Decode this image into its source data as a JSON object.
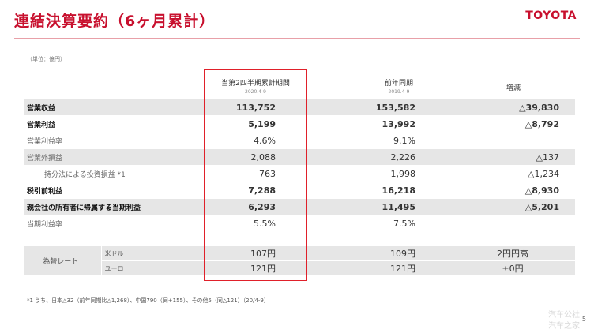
{
  "title": "連結決算要約（6ヶ月累計）",
  "brand": "TOYOTA",
  "unit": "（単位：億円）",
  "columns": {
    "current": {
      "label": "当第2四半期累計期間",
      "period": "2020.4-9"
    },
    "prior": {
      "label": "前年同期",
      "period": "2019.4-9"
    },
    "change": {
      "label": "増減"
    }
  },
  "rows": [
    {
      "label": "営業収益",
      "current": "113,752",
      "prior": "153,582",
      "change": "△39,830"
    },
    {
      "label": "営業利益",
      "current": "5,199",
      "prior": "13,992",
      "change": "△8,792"
    },
    {
      "label": "営業利益率",
      "current": "4.6%",
      "prior": "9.1%",
      "change": ""
    },
    {
      "label": "営業外損益",
      "current": "2,088",
      "prior": "2,226",
      "change": "△137"
    },
    {
      "label": "持分法による投資損益 *1",
      "current": "763",
      "prior": "1,998",
      "change": "△1,234"
    },
    {
      "label": "税引前利益",
      "current": "7,288",
      "prior": "16,218",
      "change": "△8,930"
    },
    {
      "label": "親会社の所有者に帰属する当期利益",
      "current": "6,293",
      "prior": "11,495",
      "change": "△5,201"
    },
    {
      "label": "当期利益率",
      "current": "5.5%",
      "prior": "7.5%",
      "change": ""
    }
  ],
  "fx": {
    "label": "為替レート",
    "rows": [
      {
        "currency": "米ドル",
        "current": "107円",
        "prior": "109円",
        "change": "2円円高"
      },
      {
        "currency": "ユーロ",
        "current": "121円",
        "prior": "121円",
        "change": "±0円"
      }
    ]
  },
  "footnote": "*1 うち、日本△32（前年同期比△1,268）、中国790（同+155）、その他5（同△121）（20/4-9）",
  "page_number": "5",
  "watermark": {
    "line1": "汽车公社",
    "line2": "汽车之家"
  },
  "colors": {
    "accent": "#c8102e",
    "highlight_border": "#e0202a",
    "row_shade": "#e6e6e6"
  }
}
